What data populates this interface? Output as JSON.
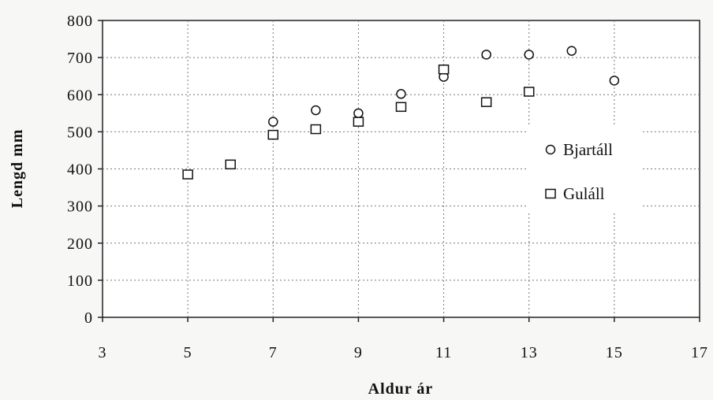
{
  "chart_data": {
    "type": "scatter",
    "xlabel": "Aldur ár",
    "ylabel": "Lengd mm",
    "xlim": [
      3,
      17
    ],
    "ylim": [
      0,
      800
    ],
    "x_ticks": [
      3,
      5,
      7,
      9,
      11,
      13,
      15,
      17
    ],
    "y_ticks": [
      0,
      100,
      200,
      300,
      400,
      500,
      600,
      700,
      800
    ],
    "grid": true,
    "legend_position": "right",
    "series": [
      {
        "name": "Bjartáll",
        "marker": "circle",
        "points": [
          {
            "x": 7,
            "y": 527
          },
          {
            "x": 8,
            "y": 558
          },
          {
            "x": 9,
            "y": 550
          },
          {
            "x": 10,
            "y": 602
          },
          {
            "x": 11,
            "y": 648
          },
          {
            "x": 12,
            "y": 708
          },
          {
            "x": 13,
            "y": 708
          },
          {
            "x": 14,
            "y": 718
          },
          {
            "x": 15,
            "y": 638
          }
        ]
      },
      {
        "name": "Guláll",
        "marker": "square",
        "points": [
          {
            "x": 5,
            "y": 385
          },
          {
            "x": 6,
            "y": 412
          },
          {
            "x": 7,
            "y": 492
          },
          {
            "x": 8,
            "y": 507
          },
          {
            "x": 9,
            "y": 527
          },
          {
            "x": 10,
            "y": 567
          },
          {
            "x": 11,
            "y": 668
          },
          {
            "x": 12,
            "y": 580
          },
          {
            "x": 13,
            "y": 608
          }
        ]
      }
    ]
  }
}
